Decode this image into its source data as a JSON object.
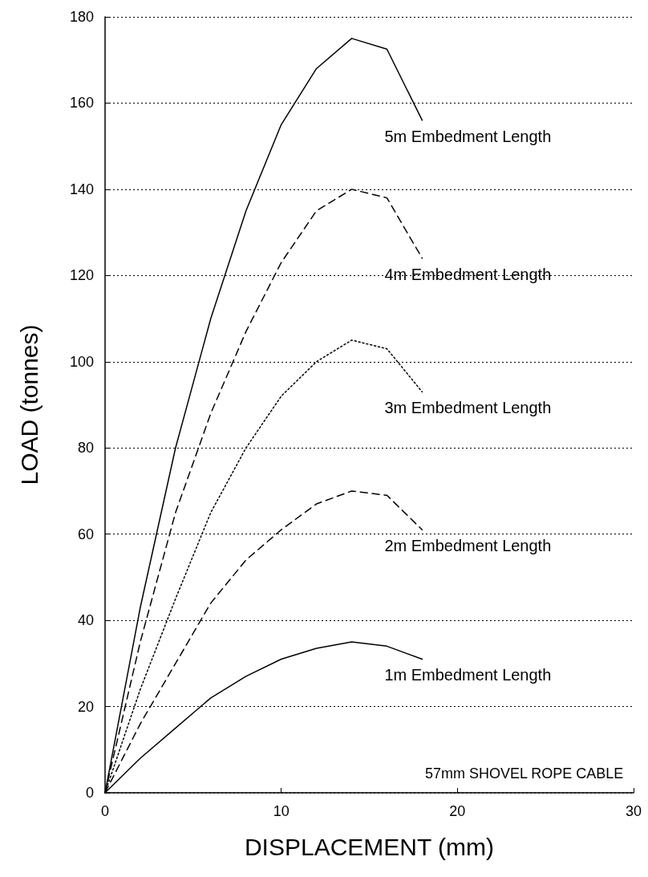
{
  "chart_data": {
    "type": "line",
    "xlabel": "DISPLACEMENT (mm)",
    "ylabel": "LOAD (tonnes)",
    "x": [
      0,
      2,
      4,
      6,
      8,
      10,
      12,
      14,
      16,
      18
    ],
    "series": [
      {
        "name": "5m Embedment Length",
        "color": "#000000",
        "line_style": "solid",
        "values": [
          0,
          43,
          80,
          110,
          135,
          155,
          168,
          175,
          172.5,
          156
        ]
      },
      {
        "name": "4m Embedment Length",
        "color": "#000000",
        "line_style": "dashed",
        "values": [
          0,
          35,
          65,
          88,
          107,
          123,
          135,
          140,
          138,
          124
        ]
      },
      {
        "name": "3m Embedment Length",
        "color": "#000000",
        "line_style": "dotted",
        "values": [
          0,
          24,
          45,
          65,
          80,
          92,
          100,
          105,
          103,
          93
        ]
      },
      {
        "name": "2m Embedment Length",
        "color": "#000000",
        "line_style": "dashed",
        "values": [
          0,
          16,
          30,
          44,
          54,
          61,
          67,
          70,
          69,
          61
        ]
      },
      {
        "name": "1m Embedment Length",
        "color": "#000000",
        "line_style": "solid",
        "values": [
          0,
          8,
          15,
          22,
          27,
          31,
          33.5,
          35,
          34,
          31
        ]
      }
    ],
    "xlim": [
      0,
      30
    ],
    "xticks": [
      0,
      10,
      20,
      30
    ],
    "ylim": [
      0,
      180
    ],
    "yticks": [
      0,
      20,
      40,
      60,
      80,
      100,
      120,
      140,
      160,
      180
    ],
    "grid": "y",
    "legend": false,
    "marker": "none",
    "annotations": [
      "57mm SHOVEL ROPE CABLE"
    ]
  }
}
